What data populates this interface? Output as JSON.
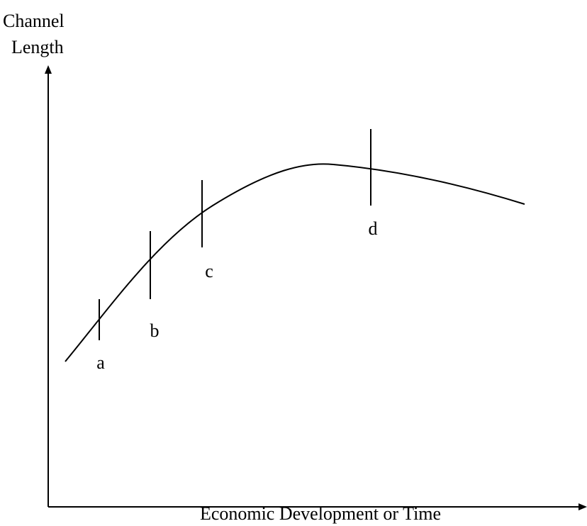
{
  "y_axis": {
    "label_lines": [
      "Channel",
      "Length"
    ]
  },
  "x_axis": {
    "label": "Economic Development or Time"
  },
  "markers": [
    {
      "label": "a"
    },
    {
      "label": "b"
    },
    {
      "label": "c"
    },
    {
      "label": "d"
    }
  ]
}
